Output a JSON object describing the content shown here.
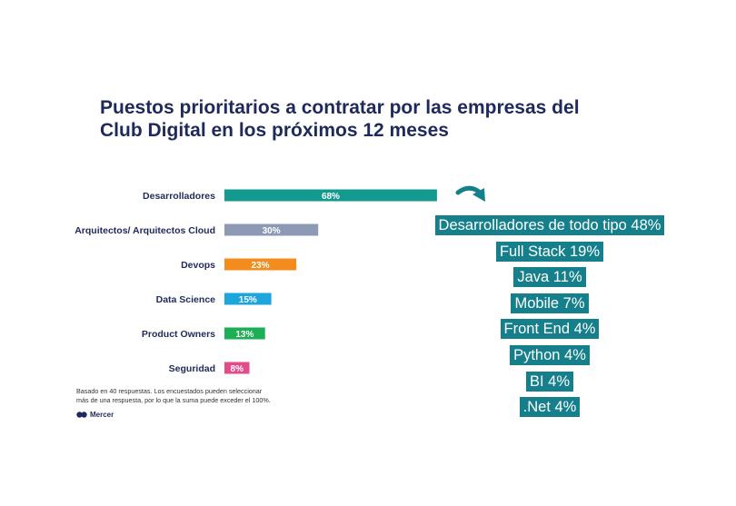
{
  "title": {
    "line1": "Puestos prioritarios a contratar por las empresas del",
    "line2": "Club Digital en los próximos 12 meses"
  },
  "chart_data": {
    "type": "bar",
    "orientation": "horizontal",
    "categories": [
      "Desarrolladores",
      "Arquitectos/ Arquitectos Cloud",
      "Devops",
      "Data Science",
      "Product Owners",
      "Seguridad"
    ],
    "values": [
      68,
      30,
      23,
      15,
      13,
      8
    ],
    "value_labels": [
      "68%",
      "30%",
      "23%",
      "15%",
      "13%",
      "8%"
    ],
    "colors": [
      "#13998e",
      "#8d9ab5",
      "#f28c1c",
      "#1ea6dc",
      "#1daf55",
      "#e24c8a"
    ],
    "unit": "%",
    "grid": false,
    "xlim": [
      0,
      100
    ]
  },
  "breakdown": {
    "arrow_icon": "curved-arrow-down-right-icon",
    "color": "#15808c",
    "items": [
      "Desarrolladores de todo tipo 48%",
      "Full Stack 19%",
      "Java 11%",
      "Mobile 7%",
      "Front End 4%",
      "Python 4%",
      "BI 4%",
      ".Net 4%"
    ]
  },
  "footnote": {
    "line1": "Basado en 40 respuestas. Los encuestados pueden seleccionar",
    "line2": "más de una respuesta, por lo que la suma puede exceder el 100%."
  },
  "logo": {
    "text": "Mercer",
    "icon": "mercer-logo-icon"
  }
}
